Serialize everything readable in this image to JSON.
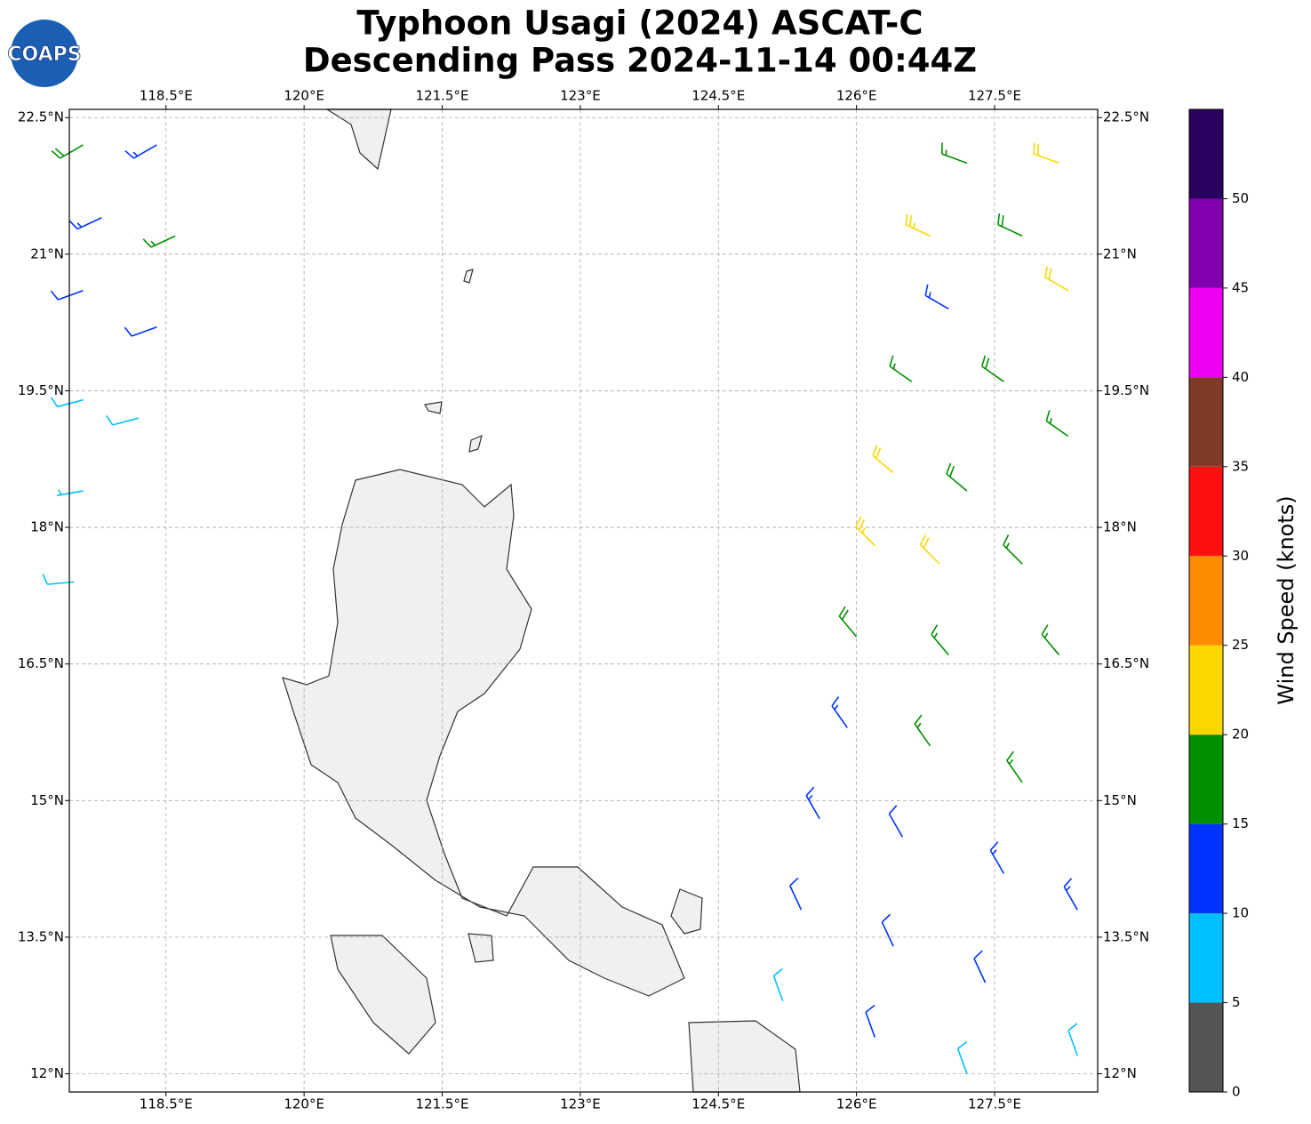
{
  "chart_data": {
    "type": "barb-map",
    "title": "Typhoon Usagi (2024) ASCAT-C",
    "subtitle": "Descending Pass 2024-11-14 00:44Z",
    "logo": "COAPS",
    "xlim": [
      117.45,
      128.62
    ],
    "ylim": [
      11.8,
      22.59
    ],
    "xticks": [
      {
        "value": 118.5,
        "label": "118.5°E"
      },
      {
        "value": 120,
        "label": "120°E"
      },
      {
        "value": 121.5,
        "label": "121.5°E"
      },
      {
        "value": 123,
        "label": "123°E"
      },
      {
        "value": 124.5,
        "label": "124.5°E"
      },
      {
        "value": 126,
        "label": "126°E"
      },
      {
        "value": 127.5,
        "label": "127.5°E"
      }
    ],
    "yticks": [
      {
        "value": 12,
        "label": "12°N"
      },
      {
        "value": 13.5,
        "label": "13.5°N"
      },
      {
        "value": 15,
        "label": "15°N"
      },
      {
        "value": 16.5,
        "label": "16.5°N"
      },
      {
        "value": 18,
        "label": "18°N"
      },
      {
        "value": 19.5,
        "label": "19.5°N"
      },
      {
        "value": 21,
        "label": "21°N"
      },
      {
        "value": 22.5,
        "label": "22.5°N"
      }
    ],
    "grid": true,
    "barbs": {
      "lon": [
        127.2,
        128.2,
        126.8,
        127.8,
        128.3,
        127.0,
        126.6,
        127.6,
        128.3,
        126.4,
        127.2,
        126.2,
        126.9,
        127.8,
        126.0,
        127.0,
        128.2,
        125.9,
        126.8,
        127.8,
        125.6,
        126.5,
        127.6,
        128.4,
        125.4,
        126.4,
        127.4,
        125.2,
        126.2,
        127.2,
        128.4,
        117.6,
        118.4,
        117.8,
        118.6,
        117.6,
        118.4,
        117.6,
        118.2,
        117.6,
        117.5
      ],
      "lat": [
        22.0,
        22.0,
        21.2,
        21.2,
        20.6,
        20.4,
        19.6,
        19.6,
        19.0,
        18.6,
        18.4,
        17.8,
        17.6,
        17.6,
        16.8,
        16.6,
        16.6,
        15.8,
        15.6,
        15.2,
        14.8,
        14.6,
        14.2,
        13.8,
        13.8,
        13.4,
        13.0,
        12.8,
        12.4,
        12.0,
        12.2,
        22.2,
        22.2,
        21.4,
        21.2,
        20.6,
        20.2,
        19.4,
        19.2,
        18.4,
        17.4
      ],
      "speed": [
        17,
        22,
        23,
        18,
        21,
        14,
        17,
        18,
        17,
        22,
        18,
        23,
        22,
        17,
        18,
        17,
        16,
        14,
        16,
        17,
        13,
        12,
        13,
        14,
        12,
        12,
        11,
        9,
        11,
        8,
        8,
        18,
        13,
        13,
        17,
        12,
        12,
        8,
        8,
        7,
        8
      ],
      "direction": [
        290,
        290,
        295,
        295,
        300,
        300,
        305,
        305,
        305,
        310,
        310,
        315,
        315,
        315,
        320,
        320,
        320,
        325,
        325,
        325,
        330,
        330,
        330,
        330,
        335,
        335,
        335,
        340,
        340,
        340,
        340,
        240,
        240,
        245,
        245,
        250,
        250,
        255,
        255,
        260,
        265
      ]
    },
    "colorbar": {
      "label": "Wind Speed (knots)",
      "bounds": [
        0,
        5,
        10,
        15,
        20,
        25,
        30,
        35,
        40,
        45,
        50,
        55
      ],
      "colors": [
        "#555555",
        "#00bfff",
        "#0033ff",
        "#009000",
        "#ffd700",
        "#ff8c00",
        "#ff1010",
        "#803a28",
        "#f000f0",
        "#8000b0",
        "#2a0060"
      ],
      "ticks": [
        0,
        5,
        10,
        15,
        20,
        25,
        30,
        35,
        40,
        45,
        50
      ]
    }
  }
}
